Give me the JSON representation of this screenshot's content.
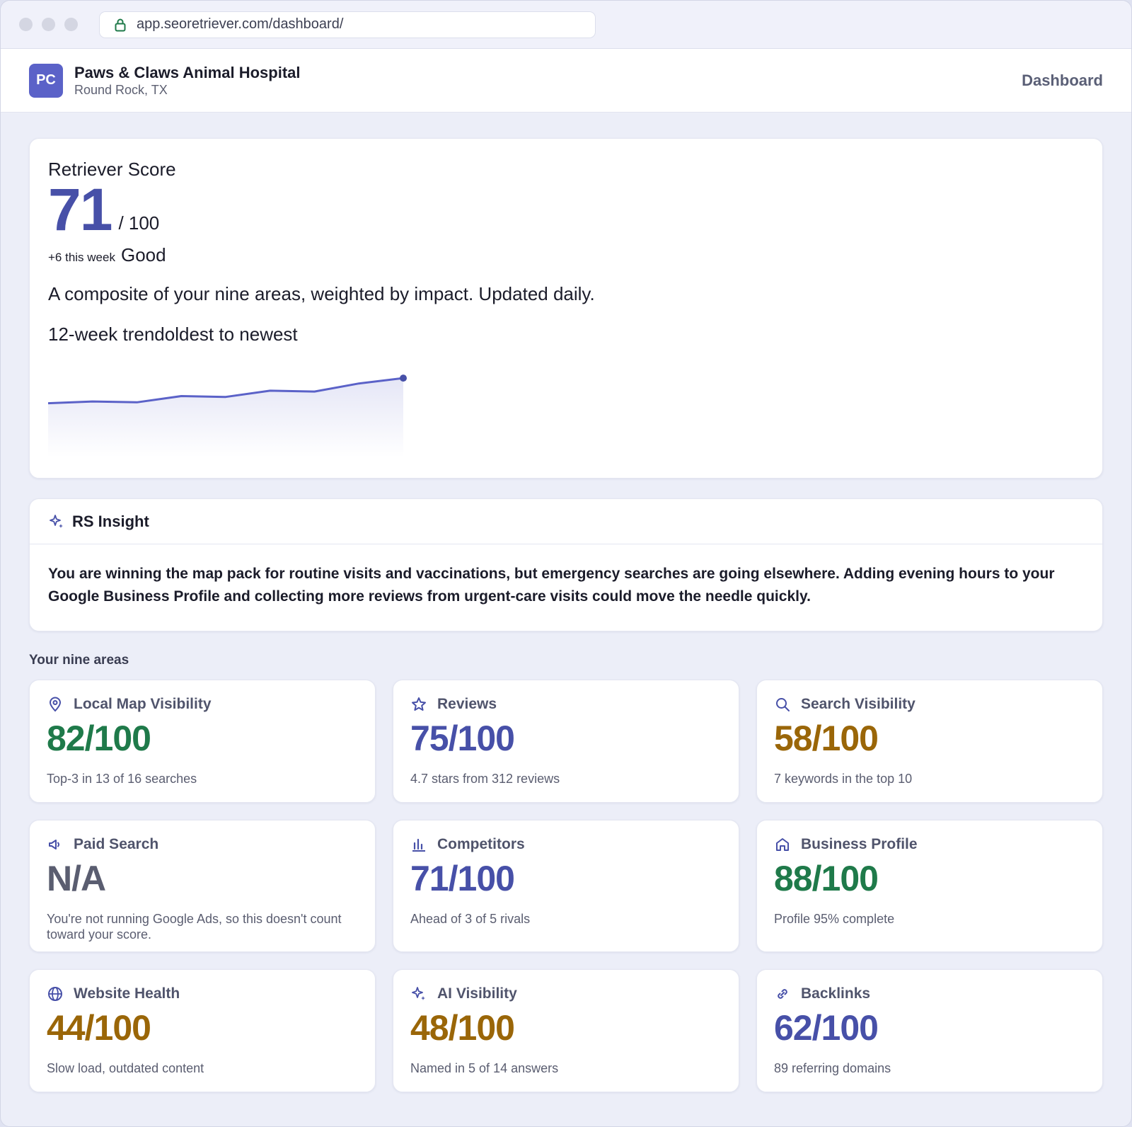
{
  "browser": {
    "url": "app.seoretriever.com/dashboard/"
  },
  "header": {
    "avatar_initials": "PC",
    "business_name": "Paws & Claws Animal Hospital",
    "location": "Round Rock, TX",
    "nav_label": "Dashboard"
  },
  "score": {
    "title": "Retriever Score",
    "value": "71",
    "max": "/ 100",
    "delta": "+6 this week",
    "rating": "Good",
    "description": "A composite of your nine areas, weighted by impact. Updated daily.",
    "trend_label": "12-week trendoldest to newest"
  },
  "chart_data": {
    "type": "line",
    "x": [
      1,
      2,
      3,
      4,
      5,
      6,
      7,
      8,
      9
    ],
    "values": [
      57,
      58,
      57.5,
      61,
      60.5,
      64,
      63.5,
      68,
      71
    ],
    "ylim": [
      30,
      75
    ],
    "color": "#5b62c8"
  },
  "insight": {
    "title": "RS Insight",
    "body": "You are winning the map pack for routine visits and vaccinations, but emergency searches are going elsewhere. Adding evening hours to your Google Business Profile and collecting more reviews from urgent-care visits could move the needle quickly."
  },
  "areas_title": "Your nine areas",
  "areas": [
    {
      "name": "Local Map Visibility",
      "icon": "map-pin-icon",
      "score": "82/100",
      "tone": "good",
      "note": "Top-3 in 13 of 16 searches"
    },
    {
      "name": "Reviews",
      "icon": "star-icon",
      "score": "75/100",
      "tone": "mid",
      "note": "4.7 stars from 312 reviews"
    },
    {
      "name": "Search Visibility",
      "icon": "search-icon",
      "score": "58/100",
      "tone": "warn",
      "note": "7 keywords in the top 10"
    },
    {
      "name": "Paid Search",
      "icon": "megaphone-icon",
      "score": "N/A",
      "tone": "na",
      "note": "You're not running Google Ads, so this doesn't count toward your score."
    },
    {
      "name": "Competitors",
      "icon": "bar-chart-icon",
      "score": "71/100",
      "tone": "mid",
      "note": "Ahead of 3 of 5 rivals"
    },
    {
      "name": "Business Profile",
      "icon": "storefront-icon",
      "score": "88/100",
      "tone": "good",
      "note": "Profile 95% complete"
    },
    {
      "name": "Website Health",
      "icon": "globe-icon",
      "score": "44/100",
      "tone": "warn",
      "note": "Slow load, outdated content"
    },
    {
      "name": "AI Visibility",
      "icon": "sparkle-icon",
      "score": "48/100",
      "tone": "warn",
      "note": "Named in 5 of 14 answers"
    },
    {
      "name": "Backlinks",
      "icon": "link-icon",
      "score": "62/100",
      "tone": "mid",
      "note": "89 referring domains"
    }
  ]
}
